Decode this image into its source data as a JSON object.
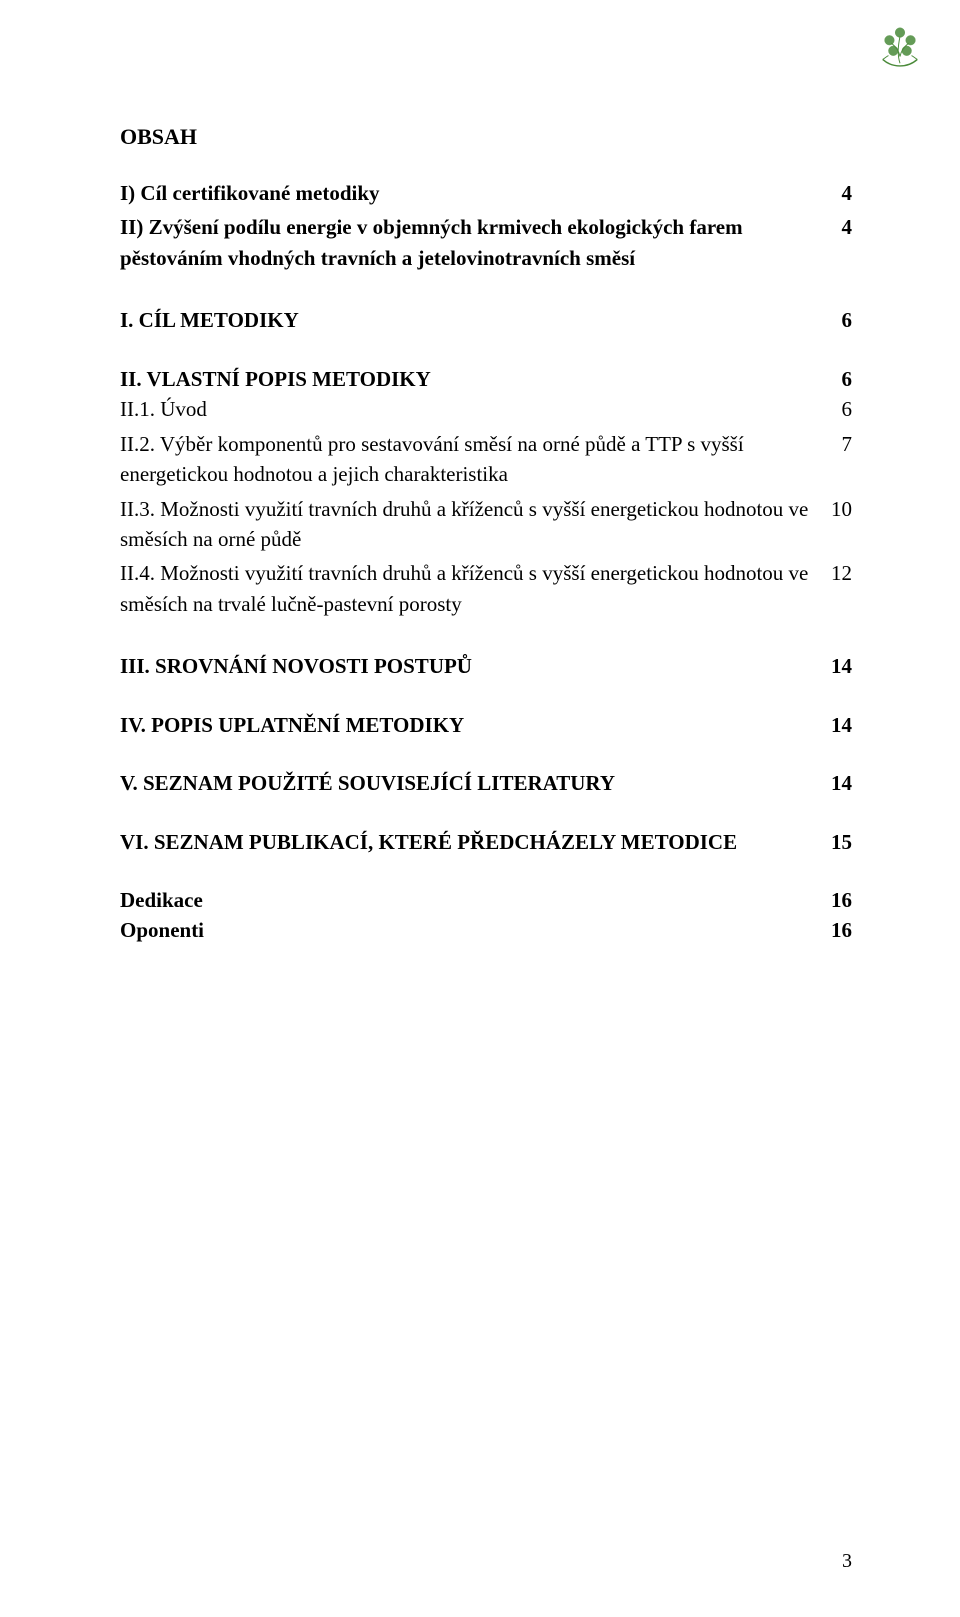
{
  "logo": {
    "name": "clover-crest-logo",
    "color": "#4a8a3a"
  },
  "heading": "OBSAH",
  "toc": [
    {
      "label": "I) Cíl certifikované metodiky",
      "page": "4",
      "bold": true
    },
    {
      "label": "II) Zvýšení podílu energie v objemných krmivech ekologických farem pěstováním vhodných travních a jetelovinotravních směsí",
      "page": "4",
      "bold": true
    },
    {
      "label": "I. CÍL METODIKY",
      "page": "6",
      "bold": true,
      "gapBefore": true
    },
    {
      "label": "II. VLASTNÍ POPIS METODIKY",
      "page": "6",
      "bold": true,
      "gapBefore": true
    },
    {
      "label": "II.1. Úvod",
      "page": "6",
      "bold": false
    },
    {
      "label": "II.2. Výběr komponentů pro sestavování směsí na orné půdě a TTP s vyšší energetickou hodnotou a jejich charakteristika",
      "page": "7",
      "bold": false
    },
    {
      "label": "II.3. Možnosti využití travních druhů a kříženců s vyšší energetickou hodnotou ve směsích na orné půdě",
      "page": "10",
      "bold": false
    },
    {
      "label": "II.4. Možnosti využití travních druhů a kříženců s vyšší energetickou hodnotou ve směsích na trvalé lučně-pastevní porosty",
      "page": "12",
      "bold": false
    },
    {
      "label": "III. SROVNÁNÍ NOVOSTI POSTUPŮ",
      "page": "14",
      "bold": true,
      "gapBefore": true
    },
    {
      "label": "IV. POPIS UPLATNĚNÍ METODIKY",
      "page": "14",
      "bold": true,
      "gapBefore": true
    },
    {
      "label": "V. SEZNAM POUŽITÉ SOUVISEJÍCÍ LITERATURY",
      "page": "14",
      "bold": true,
      "gapBefore": true
    },
    {
      "label": "VI. SEZNAM PUBLIKACÍ, KTERÉ PŘEDCHÁZELY METODICE",
      "page": "15",
      "bold": true,
      "gapBefore": true
    },
    {
      "label": "Dedikace",
      "page": "16",
      "bold": true,
      "gapBefore": true
    },
    {
      "label": "Oponenti",
      "page": "16",
      "bold": true
    }
  ],
  "pageNumber": "3"
}
